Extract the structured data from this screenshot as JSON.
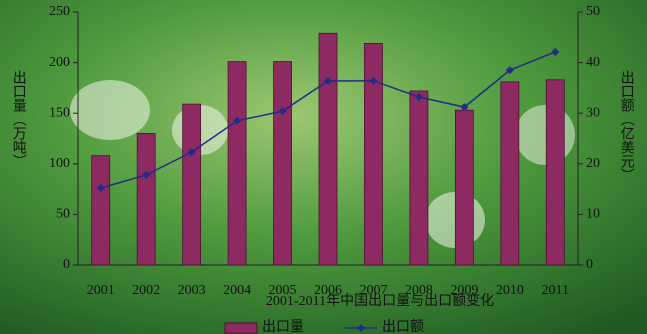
{
  "chart_data": {
    "type": "bar_line",
    "title": "2001-2011年中国出口量与出口额变化",
    "y_label": "出口量（万吨）",
    "y2_label": "出口额（亿美元）",
    "categories": [
      "2001",
      "2002",
      "2003",
      "2004",
      "2005",
      "2006",
      "2007",
      "2008",
      "2009",
      "2010",
      "2011"
    ],
    "series": [
      {
        "name": "出口量",
        "color": "#8e2a62",
        "type": "bar",
        "values": [
          108,
          130,
          159,
          201,
          201,
          229,
          219,
          172,
          153,
          181,
          183
        ]
      },
      {
        "name": "出口额",
        "color": "#1f2d86",
        "type": "line",
        "axis": "y2",
        "values": [
          15.2,
          17.8,
          22.3,
          28.5,
          30.4,
          36.4,
          36.4,
          33.2,
          31.2,
          38.5,
          42.1
        ]
      }
    ],
    "ylim": [
      0,
      250
    ],
    "yticks": [
      0,
      50,
      100,
      150,
      200,
      250
    ],
    "y2lim": [
      0,
      50
    ],
    "y2ticks": [
      0,
      10,
      20,
      30,
      40,
      50
    ],
    "legend": "bottom"
  }
}
